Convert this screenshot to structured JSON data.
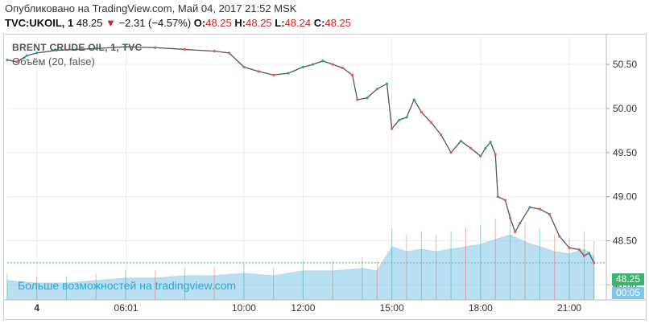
{
  "header": {
    "published": "Опубликовано на TradingView.com, Май 04, 2017 21:52 MSK",
    "symbol": "TVC:UKOIL, 1",
    "last": "48.25",
    "change_arrow": "▼",
    "change": "−2.31 (−4.57%)",
    "open_label": "O:",
    "open": "48.25",
    "high_label": "H:",
    "high": "48.25",
    "low_label": "L:",
    "low": "48.24",
    "close_label": "C:",
    "close": "48.25"
  },
  "legend": {
    "main": "BRENT CRUDE OIL, 1, TVC",
    "volume": "Объём (20, false)"
  },
  "promo": "Больше возможностей на tradingview.com",
  "price_tag": "48.25",
  "time_tag": "00:05",
  "colors": {
    "up": "#26a69a",
    "down": "#ef5350",
    "wick": "#444444",
    "volume": "#7fc7e8",
    "volume_ma": "#a9daf0",
    "accent_green": "#3cb371",
    "accent_blue": "#2ea7d8",
    "grid": "#ececec"
  },
  "chart_data": {
    "type": "line",
    "title": "BRENT CRUDE OIL, 1, TVC",
    "y_ticks": [
      "50.50",
      "50.00",
      "49.50",
      "49.00",
      "48.50",
      "48.00"
    ],
    "y_range": [
      47.83,
      50.82
    ],
    "x_range": [
      "04 02:00",
      "04 22:15"
    ],
    "x_ticks": [
      {
        "t": "04 03:00",
        "label": "4",
        "bold": true
      },
      {
        "t": "04 06:01",
        "label": "06:01",
        "bold": false
      },
      {
        "t": "04 10:00",
        "label": "10:00",
        "bold": false
      },
      {
        "t": "04 12:00",
        "label": "12:00",
        "bold": false
      },
      {
        "t": "04 15:00",
        "label": "15:00",
        "bold": false
      },
      {
        "t": "04 18:00",
        "label": "18:00",
        "bold": false
      },
      {
        "t": "04 21:00",
        "label": "21:00",
        "bold": false
      }
    ],
    "series": [
      {
        "values": [
          [
            "04 02:00",
            50.55
          ],
          [
            "04 02:20",
            50.53
          ],
          [
            "04 02:40",
            50.6
          ],
          [
            "04 03:00",
            50.63
          ],
          [
            "04 03:40",
            50.66
          ],
          [
            "04 04:20",
            50.67
          ],
          [
            "04 05:00",
            50.68
          ],
          [
            "04 06:00",
            50.7
          ],
          [
            "04 07:00",
            50.69
          ],
          [
            "04 08:00",
            50.67
          ],
          [
            "04 09:00",
            50.65
          ],
          [
            "04 09:30",
            50.63
          ],
          [
            "04 10:00",
            50.47
          ],
          [
            "04 10:30",
            50.42
          ],
          [
            "04 11:00",
            50.38
          ],
          [
            "04 11:30",
            50.4
          ],
          [
            "04 12:00",
            50.47
          ],
          [
            "04 12:20",
            50.5
          ],
          [
            "04 12:40",
            50.54
          ],
          [
            "04 13:00",
            50.5
          ],
          [
            "04 13:20",
            50.46
          ],
          [
            "04 13:40",
            50.38
          ],
          [
            "04 13:50",
            50.1
          ],
          [
            "04 14:10",
            50.12
          ],
          [
            "04 14:30",
            50.22
          ],
          [
            "04 14:50",
            50.28
          ],
          [
            "04 15:00",
            49.77
          ],
          [
            "04 15:15",
            49.87
          ],
          [
            "04 15:30",
            49.9
          ],
          [
            "04 15:45",
            50.1
          ],
          [
            "04 16:00",
            49.96
          ],
          [
            "04 16:20",
            49.84
          ],
          [
            "04 16:40",
            49.7
          ],
          [
            "04 17:00",
            49.5
          ],
          [
            "04 17:20",
            49.63
          ],
          [
            "04 17:40",
            49.55
          ],
          [
            "04 18:00",
            49.46
          ],
          [
            "04 18:10",
            49.55
          ],
          [
            "04 18:20",
            49.62
          ],
          [
            "04 18:30",
            49.48
          ],
          [
            "04 18:35",
            49.0
          ],
          [
            "04 18:50",
            48.96
          ],
          [
            "04 19:00",
            48.76
          ],
          [
            "04 19:10",
            48.6
          ],
          [
            "04 19:20",
            48.7
          ],
          [
            "04 19:40",
            48.88
          ],
          [
            "04 20:00",
            48.86
          ],
          [
            "04 20:20",
            48.8
          ],
          [
            "04 20:40",
            48.55
          ],
          [
            "04 21:00",
            48.42
          ],
          [
            "04 21:20",
            48.4
          ],
          [
            "04 21:30",
            48.33
          ],
          [
            "04 21:40",
            48.36
          ],
          [
            "04 21:50",
            48.25
          ]
        ]
      }
    ],
    "volume": {
      "name": "Объём (20, false)",
      "values": [
        [
          "04 02:00",
          8
        ],
        [
          "04 03:00",
          7
        ],
        [
          "04 04:00",
          7
        ],
        [
          "04 05:00",
          8
        ],
        [
          "04 06:00",
          9
        ],
        [
          "04 07:00",
          9
        ],
        [
          "04 08:00",
          10
        ],
        [
          "04 09:00",
          10
        ],
        [
          "04 10:00",
          11
        ],
        [
          "04 11:00",
          10
        ],
        [
          "04 12:00",
          12
        ],
        [
          "04 13:00",
          12
        ],
        [
          "04 14:00",
          13
        ],
        [
          "04 14:30",
          12
        ],
        [
          "04 15:00",
          22
        ],
        [
          "04 15:30",
          20
        ],
        [
          "04 16:00",
          21
        ],
        [
          "04 16:30",
          20
        ],
        [
          "04 17:00",
          21
        ],
        [
          "04 17:30",
          22
        ],
        [
          "04 18:00",
          23
        ],
        [
          "04 18:30",
          25
        ],
        [
          "04 19:00",
          27
        ],
        [
          "04 19:30",
          24
        ],
        [
          "04 20:00",
          22
        ],
        [
          "04 20:30",
          20
        ],
        [
          "04 21:00",
          19
        ],
        [
          "04 21:30",
          21
        ],
        [
          "04 21:50",
          18
        ]
      ]
    }
  }
}
